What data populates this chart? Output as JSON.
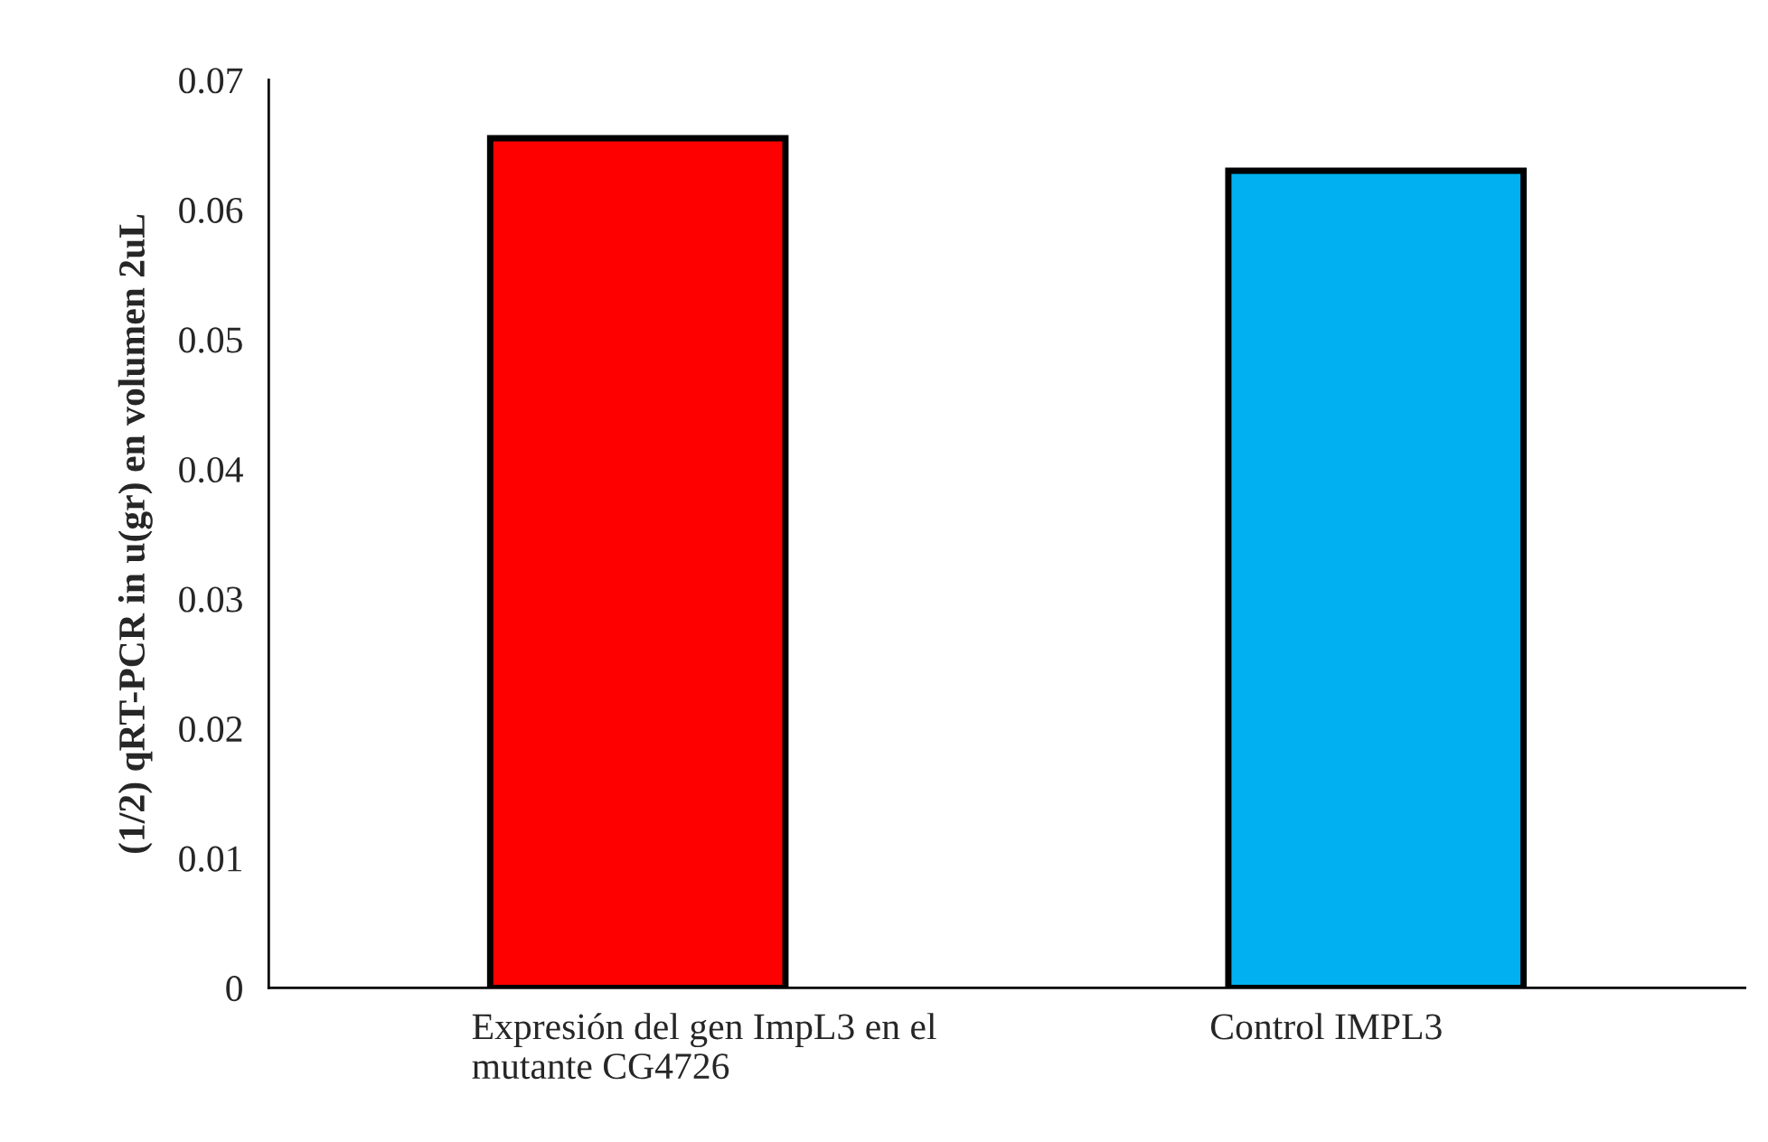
{
  "chart_data": {
    "type": "bar",
    "ylabel": "(1/2) qRT-PCR in u(gr) en volumen 2uL",
    "categories": [
      "Expresión del gen ImpL3 en el\nmutante CG4726",
      "Control IMPL3"
    ],
    "values": [
      0.0655,
      0.063
    ],
    "colors": [
      "#ff0000",
      "#00b0f0"
    ],
    "ylim": [
      0,
      0.07
    ],
    "yticks": [
      {
        "value": 0,
        "label": "0"
      },
      0.01,
      0.02,
      0.03,
      0.04,
      0.05,
      0.06,
      0.07
    ],
    "grid": false,
    "legend": false
  }
}
